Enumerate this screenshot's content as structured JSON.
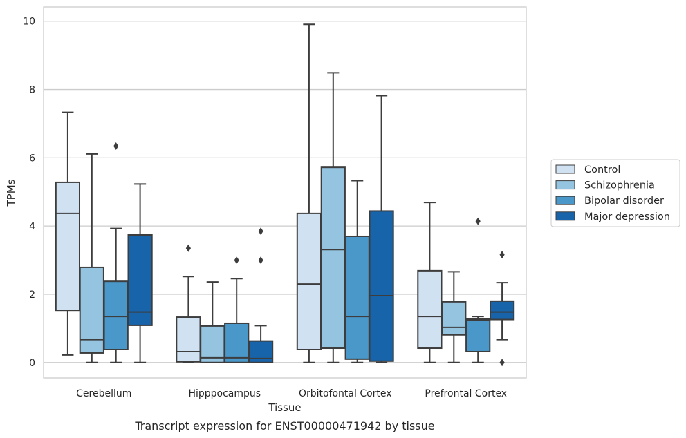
{
  "caption": "Transcript expression for ENST00000471942 by tissue",
  "chart_data": {
    "type": "box",
    "xlabel": "Tissue",
    "ylabel": "TPMs",
    "ylim": [
      -0.45,
      10.42
    ],
    "yticks": [
      0,
      2,
      4,
      6,
      8,
      10
    ],
    "grid": "horizontal",
    "legend_position": "right",
    "categories": [
      "Cerebellum",
      "Hipppocampus",
      "Orbitofontal Cortex",
      "Prefrontal Cortex"
    ],
    "series": [
      {
        "name": "Control",
        "color": "#d0e1f2",
        "boxes": [
          {
            "whislo": 0.22,
            "q1": 1.53,
            "med": 4.37,
            "q3": 5.28,
            "whishi": 7.33,
            "fliers": []
          },
          {
            "whislo": 0.0,
            "q1": 0.02,
            "med": 0.32,
            "q3": 1.33,
            "whishi": 2.52,
            "fliers": [
              3.35
            ]
          },
          {
            "whislo": 0.0,
            "q1": 0.38,
            "med": 2.3,
            "q3": 4.37,
            "whishi": 9.91,
            "fliers": []
          },
          {
            "whislo": 0.0,
            "q1": 0.42,
            "med": 1.35,
            "q3": 2.69,
            "whishi": 4.69,
            "fliers": []
          }
        ]
      },
      {
        "name": "Schizophrenia",
        "color": "#94c4df",
        "boxes": [
          {
            "whislo": 0.0,
            "q1": 0.28,
            "med": 0.67,
            "q3": 2.79,
            "whishi": 6.11,
            "fliers": []
          },
          {
            "whislo": 0.0,
            "q1": 0.0,
            "med": 0.14,
            "q3": 1.07,
            "whishi": 2.36,
            "fliers": []
          },
          {
            "whislo": 0.0,
            "q1": 0.42,
            "med": 3.31,
            "q3": 5.72,
            "whishi": 8.49,
            "fliers": []
          },
          {
            "whislo": 0.0,
            "q1": 0.81,
            "med": 1.03,
            "q3": 1.78,
            "whishi": 2.66,
            "fliers": []
          }
        ]
      },
      {
        "name": "Bipolar disorder",
        "color": "#4a98c9",
        "boxes": [
          {
            "whislo": 0.0,
            "q1": 0.38,
            "med": 1.35,
            "q3": 2.38,
            "whishi": 3.93,
            "fliers": [
              6.34
            ]
          },
          {
            "whislo": 0.0,
            "q1": 0.0,
            "med": 0.14,
            "q3": 1.15,
            "whishi": 2.46,
            "fliers": [
              3.0
            ]
          },
          {
            "whislo": 0.0,
            "q1": 0.1,
            "med": 1.35,
            "q3": 3.7,
            "whishi": 5.33,
            "fliers": []
          },
          {
            "whislo": 0.0,
            "q1": 0.32,
            "med": 1.25,
            "q3": 1.28,
            "whishi": 1.35,
            "fliers": [
              4.14
            ]
          }
        ]
      },
      {
        "name": "Major depression",
        "color": "#1764ab",
        "boxes": [
          {
            "whislo": 0.0,
            "q1": 1.09,
            "med": 1.48,
            "q3": 3.74,
            "whishi": 5.23,
            "fliers": []
          },
          {
            "whislo": 0.0,
            "q1": 0.0,
            "med": 0.12,
            "q3": 0.63,
            "whishi": 1.08,
            "fliers": [
              3.85,
              3.0
            ]
          },
          {
            "whislo": 0.0,
            "q1": 0.04,
            "med": 1.96,
            "q3": 4.44,
            "whishi": 7.82,
            "fliers": []
          },
          {
            "whislo": 0.67,
            "q1": 1.26,
            "med": 1.48,
            "q3": 1.8,
            "whishi": 2.34,
            "fliers": [
              3.16,
              0.0
            ]
          }
        ]
      }
    ]
  }
}
